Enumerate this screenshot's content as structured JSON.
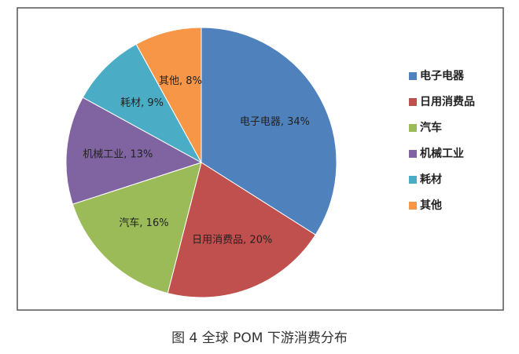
{
  "chart_data": {
    "type": "pie",
    "title": "图 4  全球 POM 下游消费分布",
    "categories": [
      "电子电器",
      "日用消费品",
      "汽车",
      "机械工业",
      "耗材",
      "其他"
    ],
    "values": [
      34,
      20,
      16,
      13,
      9,
      8
    ],
    "value_labels": [
      "电子电器, 34%",
      "日用消费品, 20%",
      "汽车, 16%",
      "机械工业, 13%",
      "耗材, 9%",
      "其他, 8%"
    ],
    "colors": [
      "#4f81bd",
      "#c0504d",
      "#9bbb59",
      "#8064a2",
      "#4bacc6",
      "#f79646"
    ],
    "legend": "right"
  }
}
